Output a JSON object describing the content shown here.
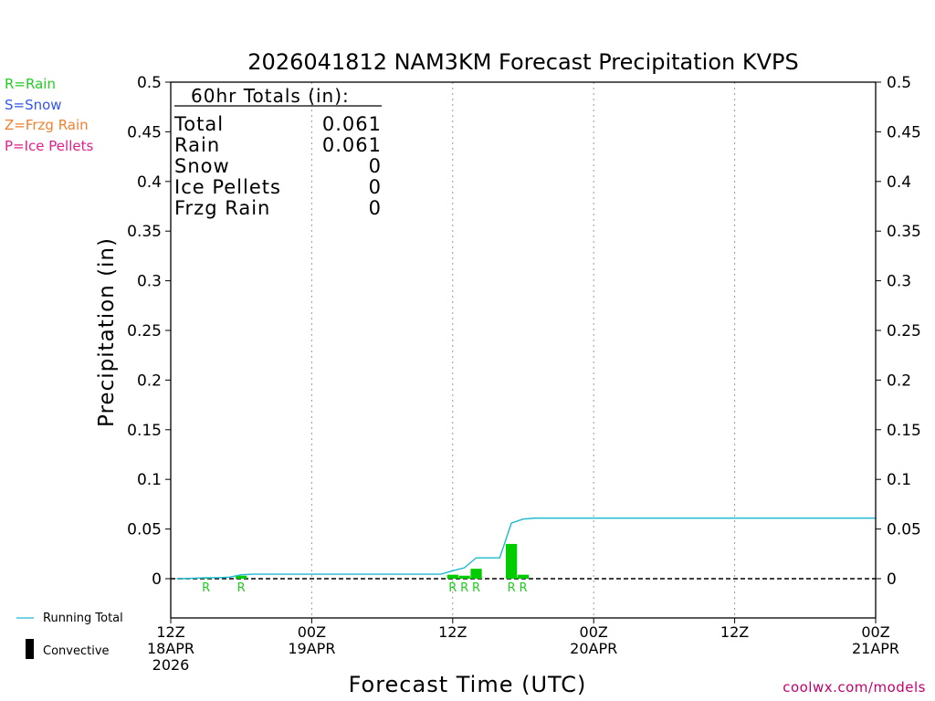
{
  "title": "2026041812 NAM3KM Forecast Precipitation KVPS",
  "type_legend": [
    {
      "label": "R=Rain",
      "color": "#22cc22"
    },
    {
      "label": "S=Snow",
      "color": "#3355ee"
    },
    {
      "label": "Z=Frzg Rain",
      "color": "#f08030"
    },
    {
      "label": "P=Ice Pellets",
      "color": "#e0208a"
    }
  ],
  "totals": {
    "header": "60hr Totals (in):",
    "rows": [
      {
        "label": "Total",
        "value": "0.061"
      },
      {
        "label": "Rain",
        "value": "0.061"
      },
      {
        "label": "Snow",
        "value": "0"
      },
      {
        "label": "Ice Pellets",
        "value": "0"
      },
      {
        "label": "Frzg Rain",
        "value": "0"
      }
    ]
  },
  "legend_bottom": {
    "running_total": "Running Total",
    "convective": "Convective"
  },
  "credit": "coolwx.com/models",
  "colors": {
    "rain": "#00cc00",
    "running_total": "#20b8d0",
    "gridline": "#999999"
  },
  "chart_data": {
    "type": "bar",
    "title": "2026041812 NAM3KM Forecast Precipitation KVPS",
    "xlabel": "Forecast Time (UTC)",
    "ylabel": "Precipitation (in)",
    "ylim": [
      -0.04,
      0.5
    ],
    "yticks": [
      "0",
      "0.05",
      "0.1",
      "0.15",
      "0.2",
      "0.25",
      "0.3",
      "0.35",
      "0.4",
      "0.45",
      "0.5"
    ],
    "xlim_hours": [
      0,
      60
    ],
    "xticks": [
      {
        "hour": 0,
        "lines": [
          "12Z",
          "18APR",
          "2026"
        ]
      },
      {
        "hour": 12,
        "lines": [
          "00Z",
          "19APR"
        ]
      },
      {
        "hour": 24,
        "lines": [
          "12Z"
        ]
      },
      {
        "hour": 36,
        "lines": [
          "00Z",
          "20APR"
        ]
      },
      {
        "hour": 48,
        "lines": [
          "12Z"
        ]
      },
      {
        "hour": 60,
        "lines": [
          "00Z",
          "21APR"
        ]
      }
    ],
    "bars": [
      {
        "hour": 3,
        "value": 0.001,
        "type": "R"
      },
      {
        "hour": 6,
        "value": 0.003,
        "type": "R"
      },
      {
        "hour": 24,
        "value": 0.004,
        "type": "R"
      },
      {
        "hour": 25,
        "value": 0.003,
        "type": "R"
      },
      {
        "hour": 26,
        "value": 0.01,
        "type": "R"
      },
      {
        "hour": 29,
        "value": 0.035,
        "type": "R"
      },
      {
        "hour": 30,
        "value": 0.004,
        "type": "R"
      }
    ],
    "running_total": {
      "hours": [
        0.5,
        1,
        2,
        3,
        4,
        5,
        6,
        7,
        8,
        10,
        12,
        14,
        16,
        18,
        20,
        22,
        23,
        24,
        25,
        26,
        27,
        28,
        29,
        30,
        31,
        32,
        36,
        40,
        44,
        48,
        52,
        56,
        60
      ],
      "values": [
        0,
        0,
        0.0005,
        0.001,
        0.001,
        0.0015,
        0.004,
        0.0045,
        0.0045,
        0.0045,
        0.0045,
        0.0045,
        0.0045,
        0.0045,
        0.0045,
        0.0045,
        0.0045,
        0.008,
        0.011,
        0.021,
        0.021,
        0.021,
        0.056,
        0.06,
        0.061,
        0.061,
        0.061,
        0.061,
        0.061,
        0.061,
        0.061,
        0.061,
        0.061
      ]
    }
  }
}
